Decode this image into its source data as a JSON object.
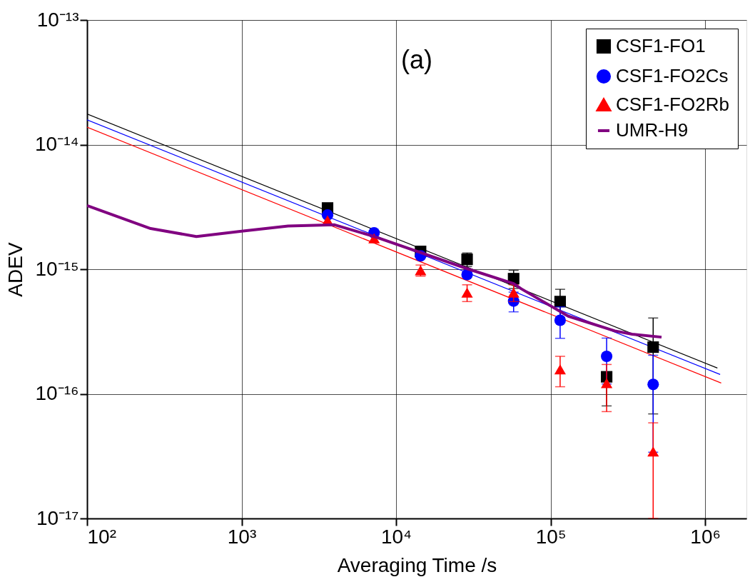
{
  "chart_data": {
    "type": "scatter",
    "xlabel": "Averaging Time /s",
    "ylabel": "ADEV",
    "log": "xy",
    "grid": true,
    "legend": "top right",
    "annotations": [
      "(a)"
    ],
    "xlim": [
      100,
      1850000
    ],
    "ylim": [
      1e-17,
      1e-13
    ],
    "xticks": [
      {
        "value": 100,
        "label": "10²"
      },
      {
        "value": 1000,
        "label": "10³"
      },
      {
        "value": 10000,
        "label": "10⁴"
      },
      {
        "value": 100000,
        "label": "10⁵"
      },
      {
        "value": 1000000,
        "label": "10⁶"
      }
    ],
    "yticks": [
      {
        "value": 1e-17,
        "label": "10⁻¹⁷"
      },
      {
        "value": 1e-16,
        "label": "10⁻¹⁶"
      },
      {
        "value": 1e-15,
        "label": "10⁻¹⁵"
      },
      {
        "value": 1e-14,
        "label": "10⁻¹⁴"
      },
      {
        "value": 1e-13,
        "label": "10⁻¹³"
      }
    ],
    "series": [
      {
        "type": "line",
        "color": "#000000",
        "x": [
          100,
          1200000
        ],
        "values": [
          1.76e-14,
          1.61e-16
        ]
      },
      {
        "type": "line",
        "color": "#0000ff",
        "x": [
          100,
          1250000
        ],
        "values": [
          1.58e-14,
          1.43e-16
        ]
      },
      {
        "type": "line",
        "color": "#ff0000",
        "x": [
          100,
          1270000
        ],
        "values": [
          1.38e-14,
          1.22e-16
        ]
      },
      {
        "name": "CSF1-FO1",
        "color": "#000000",
        "marker": "square",
        "x": [
          3600,
          7200,
          14400,
          28800,
          57600,
          115200,
          230400,
          460800
        ],
        "values": [
          3.1e-15,
          null,
          1.39e-15,
          1.2e-15,
          8.4e-16,
          5.5e-16,
          1.37e-16,
          2.37e-16
        ],
        "errors": [
          null,
          null,
          null,
          1.5e-16,
          1.4e-16,
          1.4e-16,
          [
            8e-17,
            1.37e-16
          ],
          [
            6.9e-17,
            4.06e-16
          ]
        ]
      },
      {
        "name": "CSF1-FO2Cs",
        "color": "#0000ff",
        "marker": "circle",
        "x": [
          3600,
          7200,
          14400,
          28800,
          57600,
          115200,
          230400,
          460800
        ],
        "values": [
          2.72e-15,
          1.96e-15,
          1.28e-15,
          9.06e-16,
          5.55e-16,
          3.89e-16,
          2e-16,
          1.19e-16
        ],
        "errors": [
          null,
          null,
          null,
          null,
          1e-16,
          1.1e-16,
          8e-17,
          8.5e-17
        ]
      },
      {
        "name": "CSF1-FO2Rb",
        "color": "#ff0000",
        "marker": "triangle",
        "x": [
          3600,
          7200,
          14400,
          28800,
          57600,
          115200,
          230400,
          460800
        ],
        "values": [
          2.47e-15,
          1.77e-15,
          9.8e-16,
          6.5e-16,
          6.5e-16,
          1.57e-16,
          1.22e-16,
          3.45e-17
        ],
        "errors": [
          null,
          null,
          1e-16,
          1e-16,
          1e-16,
          4.3e-17,
          5e-17,
          [
            1e-17,
            5.85e-17
          ]
        ]
      },
      {
        "type": "line",
        "name": "UMR-H9",
        "color": "#800080",
        "marker": "none",
        "x": [
          100,
          258,
          510,
          1000,
          2000,
          4000,
          7200,
          28800,
          57600,
          64500,
          130000,
          260000,
          337000,
          522000
        ],
        "values": [
          3.24e-15,
          2.12e-15,
          1.83e-15,
          2.02e-15,
          2.22e-15,
          2.27e-15,
          1.83e-15,
          1.01e-15,
          7.66e-16,
          6.97e-16,
          4.2e-16,
          3.2e-16,
          3.01e-16,
          2.85e-16
        ]
      }
    ]
  }
}
